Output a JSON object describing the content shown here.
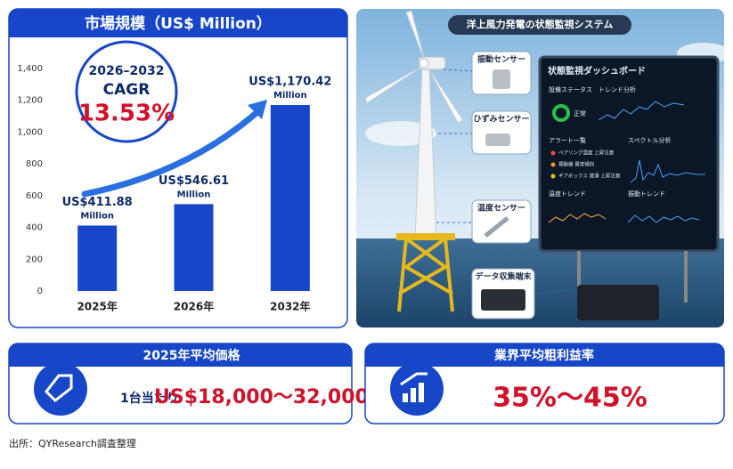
{
  "chart_data": {
    "type": "bar",
    "title": "市場規模（US$ Million）",
    "categories": [
      "2025年",
      "2026年",
      "2032年"
    ],
    "values": [
      411.88,
      546.61,
      1170.42
    ],
    "value_labels": [
      "US$411.88",
      "US$546.61",
      "US$1,170.42"
    ],
    "value_label_unit": "Million",
    "color": "#1747c8",
    "ylim": [
      0,
      1400
    ],
    "yticks": [
      0,
      200,
      400,
      600,
      800,
      {
        "value": 1000,
        "label": "1,000"
      },
      {
        "value": 1200,
        "label": "1,200"
      },
      {
        "value": 1400,
        "label": "1,400"
      }
    ],
    "grid": false,
    "cagr": {
      "period": "2026–2032",
      "label": "CAGR",
      "rate": "13.53%"
    }
  },
  "system": {
    "title": "洋上風力発電の状態監視システム",
    "sensors": [
      "振動センサー",
      "ひずみセンサー",
      "温度センサー",
      "データ収集端末"
    ],
    "dashboard": {
      "title": "状態監視ダッシュボード",
      "status_label": "設備ステータス",
      "status": "正常",
      "trend": "トレンド分析",
      "alerts_title": "アラート一覧",
      "alerts": [
        "ベアリング温度 上昇注意",
        "振動値 異常傾向",
        "ギアボックス 潤滑 上昇注意"
      ],
      "spectrum": "スペクトル分析",
      "temp_trend": "温度トレンド",
      "vib_trend": "振動トレンド"
    }
  },
  "price": {
    "title": "2025年平均価格",
    "unit_label": "1台当たり",
    "range": "US$18,000～32,000"
  },
  "margin": {
    "title": "業界平均粗利益率",
    "range": "35%～45%"
  },
  "source": "出所：QYResearch調査整理"
}
